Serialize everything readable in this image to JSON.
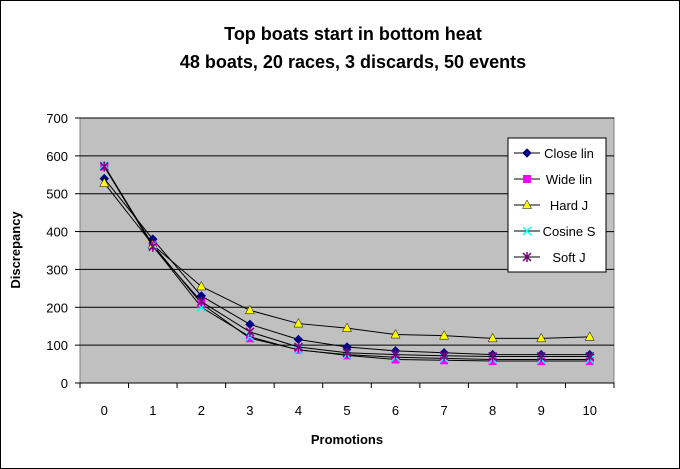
{
  "chart_data": {
    "type": "line",
    "title": "Top boats start in bottom heat",
    "subtitle": "48 boats, 20 races, 3 discards, 50 events",
    "xlabel": "Promotions",
    "ylabel": "Discrepancy",
    "x": [
      0,
      1,
      2,
      3,
      4,
      5,
      6,
      7,
      8,
      9,
      10
    ],
    "ylim": [
      0,
      700
    ],
    "yticks": [
      0,
      100,
      200,
      300,
      400,
      500,
      600,
      700
    ],
    "grid": true,
    "legend_position": "right",
    "plot_background": "#c0c0c0",
    "series": [
      {
        "name": "Close lin",
        "color": "#000080",
        "marker": "diamond",
        "values": [
          540,
          380,
          230,
          155,
          115,
          95,
          85,
          80,
          75,
          75,
          75
        ]
      },
      {
        "name": "Wide lin",
        "color": "#ff00ff",
        "marker": "square",
        "values": [
          572,
          365,
          210,
          118,
          88,
          73,
          62,
          60,
          58,
          58,
          58
        ]
      },
      {
        "name": "Hard J",
        "color": "#ffff00",
        "marker": "triangle",
        "values": [
          528,
          365,
          255,
          192,
          157,
          145,
          128,
          125,
          118,
          118,
          122
        ]
      },
      {
        "name": "Cosine S",
        "color": "#00ffff",
        "marker": "x",
        "values": [
          575,
          362,
          200,
          122,
          87,
          75,
          68,
          65,
          62,
          62,
          62
        ]
      },
      {
        "name": "Soft J",
        "color": "#800080",
        "marker": "star",
        "values": [
          572,
          360,
          215,
          135,
          95,
          80,
          75,
          72,
          70,
          70,
          70
        ]
      }
    ]
  }
}
